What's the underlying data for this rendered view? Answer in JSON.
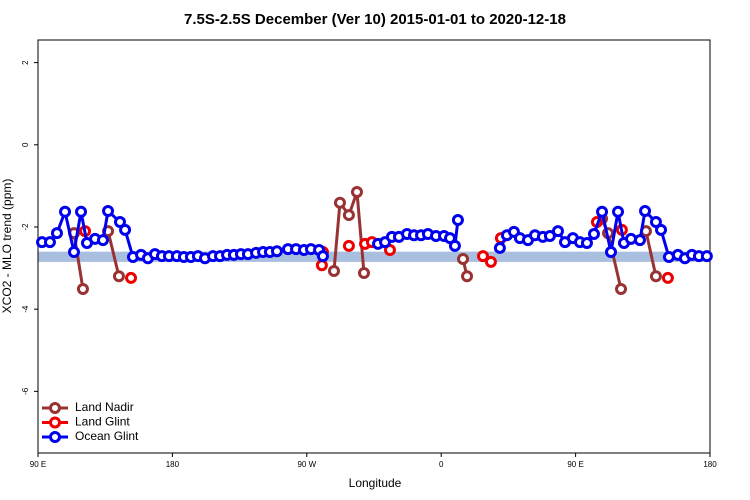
{
  "chart_data": {
    "type": "line",
    "title": "7.5S-2.5S December (Ver 10)   2015-01-01 to 2020-12-18",
    "x_label": "Longitude",
    "y_label": "XCO2 - MLO trend (ppm)",
    "xlim": [
      90,
      540
    ],
    "ylim": [
      -7.5,
      2.55
    ],
    "xticks": [
      {
        "value": 90,
        "label": "90 E"
      },
      180,
      {
        "value": 270,
        "label": "90 W"
      },
      {
        "value": 360,
        "label": "0"
      },
      {
        "value": 450,
        "label": "90 E"
      },
      {
        "value": 540,
        "label": "180"
      }
    ],
    "yticks": [
      2,
      0,
      -2,
      -4,
      -6
    ],
    "band": {
      "range": [
        -2.85,
        -2.6
      ],
      "color": "#a8bfe0"
    },
    "legend": "bottom-left",
    "series": [
      {
        "name": "Land Nadir",
        "color": "#993333",
        "show_line": true,
        "x": [
          114.1,
          120.1,
          null,
          136.9,
          144.2,
          null,
          288.2,
          292.2,
          298.2,
          303.6,
          308.3,
          null,
          374.6,
          377.3,
          null,
          467.7,
          471.7,
          480.4,
          null,
          497.1,
          503.8
        ],
        "values": [
          -2.15,
          -3.51,
          null,
          -2.1,
          -3.2,
          null,
          -3.07,
          -1.41,
          -1.71,
          -1.15,
          -3.12,
          null,
          -2.78,
          -3.2,
          null,
          -1.8,
          -2.15,
          -3.51,
          null,
          -2.1,
          -3.2
        ]
      },
      {
        "name": "Land Glint",
        "color": "#ee0000",
        "show_line": false,
        "x": [
          121.5,
          152.3,
          280.1,
          280.8,
          298.2,
          309,
          313.6,
          325.7,
          388,
          393.3,
          400,
          464.3,
          481,
          511.8
        ],
        "values": [
          -2.1,
          -3.24,
          -2.93,
          -2.61,
          -2.46,
          -2.41,
          -2.37,
          -2.56,
          -2.71,
          -2.85,
          -2.27,
          -1.88,
          -2.07,
          -3.24
        ]
      },
      {
        "name": "Ocean Glint",
        "color": "#0000ee",
        "show_line": true,
        "x": [
          92.7,
          98,
          102.7,
          108.1,
          114.1,
          118.8,
          122.8,
          128.2,
          133.5,
          136.9,
          144.9,
          148.3,
          153.6,
          159,
          163.6,
          168.3,
          173,
          177.7,
          183,
          187.7,
          192.4,
          197.1,
          201.8,
          207.2,
          211.9,
          216.6,
          221.2,
          225.9,
          230.6,
          236,
          240.7,
          245.3,
          250,
          257.4,
          262.8,
          268.1,
          272.8,
          278.2,
          280.8,
          null,
          317.7,
          322.4,
          327,
          331.7,
          337.1,
          341.8,
          346.5,
          351.1,
          356.5,
          361.9,
          365.9,
          369.2,
          371.2,
          null,
          399.3,
          404,
          408.7,
          412.7,
          418.1,
          422.8,
          428.1,
          432.8,
          438.2,
          442.9,
          448.2,
          452.9,
          457.6,
          462.3,
          467.7,
          473.7,
          478.4,
          482.4,
          487.1,
          493.1,
          496.5,
          503.8,
          507.2,
          512.5,
          518.5,
          523.2,
          527.9,
          532.6,
          537.9
        ],
        "values": [
          -2.37,
          -2.37,
          -2.15,
          -1.63,
          -2.61,
          -1.63,
          -2.39,
          -2.29,
          -2.32,
          -1.61,
          -1.88,
          -2.07,
          -2.73,
          -2.68,
          -2.76,
          -2.66,
          -2.71,
          -2.71,
          -2.71,
          -2.73,
          -2.73,
          -2.71,
          -2.76,
          -2.71,
          -2.71,
          -2.68,
          -2.68,
          -2.66,
          -2.66,
          -2.63,
          -2.61,
          -2.61,
          -2.59,
          -2.54,
          -2.54,
          -2.56,
          -2.54,
          -2.56,
          -2.71,
          null,
          -2.41,
          -2.37,
          -2.24,
          -2.24,
          -2.17,
          -2.2,
          -2.2,
          -2.17,
          -2.22,
          -2.22,
          -2.27,
          -2.46,
          -1.83,
          null,
          -2.51,
          -2.2,
          -2.12,
          -2.27,
          -2.32,
          -2.2,
          -2.24,
          -2.22,
          -2.1,
          -2.37,
          -2.27,
          -2.37,
          -2.39,
          -2.17,
          -1.63,
          -2.61,
          -1.63,
          -2.39,
          -2.29,
          -2.32,
          -1.61,
          -1.88,
          -2.07,
          -2.73,
          -2.68,
          -2.76,
          -2.68,
          -2.71,
          -2.71
        ]
      }
    ]
  }
}
